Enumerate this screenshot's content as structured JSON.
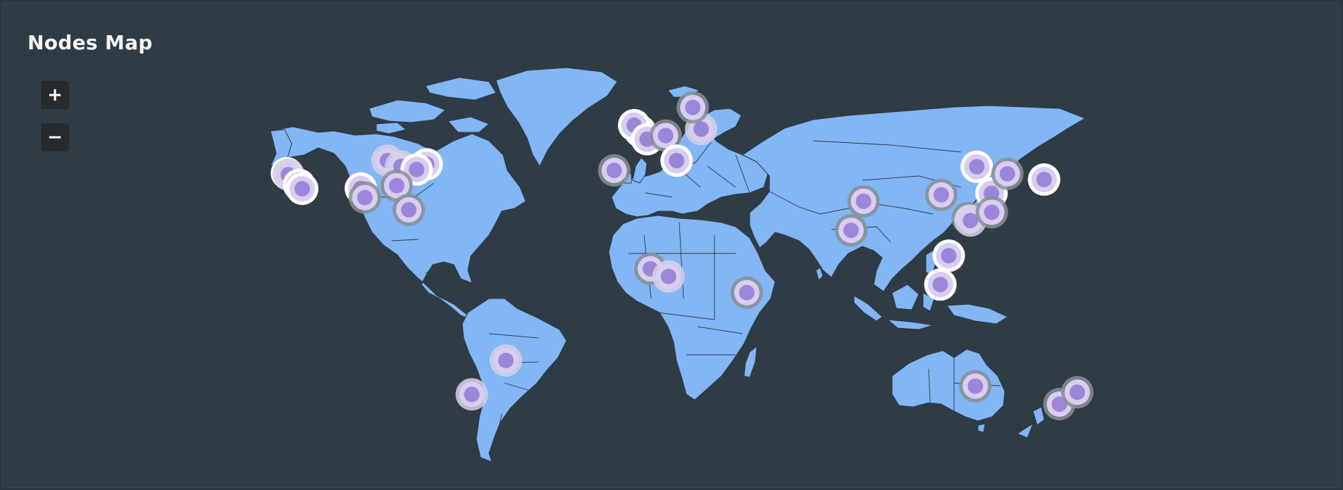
{
  "panel": {
    "title": "Nodes Map"
  },
  "controls": {
    "zoom_in_label": "+",
    "zoom_out_label": "−"
  },
  "colors": {
    "land": "#82b6f5",
    "node_core": "#9b87d9",
    "node_halo": "#d9cdf0",
    "node_ring": "#ffffff"
  },
  "nodes": [
    {
      "id": "us-west-1",
      "lon": -122.4,
      "lat": 37.8,
      "ring": "white"
    },
    {
      "id": "us-west-2",
      "lon": -121.9,
      "lat": 37.3,
      "ring": "light"
    },
    {
      "id": "us-sw-1",
      "lon": -118.2,
      "lat": 34.0,
      "ring": "white"
    },
    {
      "id": "us-sw-2",
      "lon": -117.1,
      "lat": 32.7,
      "ring": "white"
    },
    {
      "id": "us-central",
      "lon": -96.8,
      "lat": 32.8,
      "ring": "white"
    },
    {
      "id": "us-texas",
      "lon": -95.4,
      "lat": 29.8,
      "ring": "grey"
    },
    {
      "id": "us-chicago",
      "lon": -87.6,
      "lat": 41.9,
      "ring": "light"
    },
    {
      "id": "us-ohio",
      "lon": -82.9,
      "lat": 40.0,
      "ring": "light"
    },
    {
      "id": "us-ny",
      "lon": -74.0,
      "lat": 40.7,
      "ring": "white"
    },
    {
      "id": "us-va",
      "lon": -77.5,
      "lat": 39.0,
      "ring": "white"
    },
    {
      "id": "us-atlanta",
      "lon": -84.4,
      "lat": 33.7,
      "ring": "grey"
    },
    {
      "id": "us-miami",
      "lon": -80.2,
      "lat": 25.8,
      "ring": "grey"
    },
    {
      "id": "br-sao-paulo",
      "lon": -46.6,
      "lat": -23.5,
      "ring": "light"
    },
    {
      "id": "ar-buenos-aires",
      "lon": -58.4,
      "lat": -34.6,
      "ring": "light"
    },
    {
      "id": "uk-london",
      "lon": -0.1,
      "lat": 51.5,
      "ring": "white"
    },
    {
      "id": "uk-manchester",
      "lon": -2.2,
      "lat": 53.5,
      "ring": "white"
    },
    {
      "id": "fr-paris",
      "lon": 2.3,
      "lat": 48.9,
      "ring": "white"
    },
    {
      "id": "de-frankfurt",
      "lon": 8.7,
      "lat": 50.1,
      "ring": "grey"
    },
    {
      "id": "pl-warsaw",
      "lon": 21.0,
      "lat": 52.2,
      "ring": "light"
    },
    {
      "id": "se-stockholm",
      "lon": 18.1,
      "lat": 59.3,
      "ring": "grey"
    },
    {
      "id": "pt-lisbon",
      "lon": -9.1,
      "lat": 38.7,
      "ring": "grey"
    },
    {
      "id": "it-rome",
      "lon": 12.5,
      "lat": 41.9,
      "ring": "white"
    },
    {
      "id": "ng-lagos",
      "lon": 3.4,
      "lat": 6.5,
      "ring": "grey"
    },
    {
      "id": "cm-douala",
      "lon": 9.7,
      "lat": 4.0,
      "ring": "light"
    },
    {
      "id": "ke-nairobi",
      "lon": 36.8,
      "lat": -1.3,
      "ring": "grey"
    },
    {
      "id": "in-delhi",
      "lon": 77.2,
      "lat": 28.6,
      "ring": "grey"
    },
    {
      "id": "in-mumbai",
      "lon": 72.9,
      "lat": 19.1,
      "ring": "grey"
    },
    {
      "id": "cn-chengdu",
      "lon": 104.1,
      "lat": 30.7,
      "ring": "grey"
    },
    {
      "id": "cn-beijing",
      "lon": 116.4,
      "lat": 39.9,
      "ring": "white"
    },
    {
      "id": "cn-shanghai",
      "lon": 121.5,
      "lat": 31.2,
      "ring": "white"
    },
    {
      "id": "cn-guangzhou",
      "lon": 113.3,
      "lat": 23.1,
      "ring": "grey"
    },
    {
      "id": "hk",
      "lon": 114.2,
      "lat": 22.3,
      "ring": "light"
    },
    {
      "id": "tw-taipei",
      "lon": 121.6,
      "lat": 25.0,
      "ring": "grey"
    },
    {
      "id": "vn-hcm",
      "lon": 106.7,
      "lat": 10.8,
      "ring": "white"
    },
    {
      "id": "sg",
      "lon": 103.8,
      "lat": 1.35,
      "ring": "white"
    },
    {
      "id": "kr-seoul",
      "lon": 127.0,
      "lat": 37.6,
      "ring": "grey"
    },
    {
      "id": "jp-tokyo",
      "lon": 139.7,
      "lat": 35.7,
      "ring": "white"
    },
    {
      "id": "au-perth",
      "lon": 115.9,
      "lat": -31.9,
      "ring": "grey"
    },
    {
      "id": "au-melbourne",
      "lon": 145.0,
      "lat": -37.8,
      "ring": "grey"
    },
    {
      "id": "au-sydney",
      "lon": 151.2,
      "lat": -33.9,
      "ring": "grey"
    }
  ]
}
